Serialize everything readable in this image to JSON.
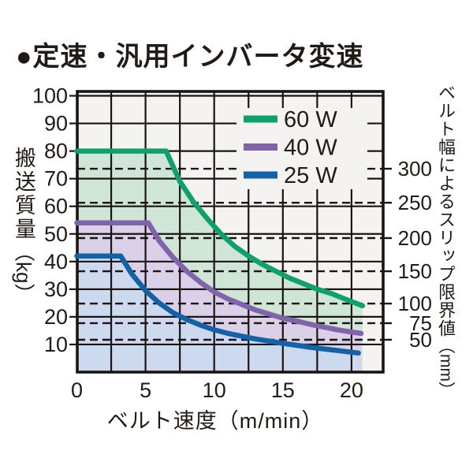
{
  "page": {
    "title": "●定速・汎用インバータ変速"
  },
  "chart_data": {
    "type": "line",
    "title": "●定速・汎用インバータ変速",
    "xlabel": "ベルト速度（m/min）",
    "ylabel_main": "搬送質量",
    "ylabel_unit": "（kg）",
    "y2label_main": "ベルト幅によるスリップ限界値",
    "y2label_unit": "（mm）",
    "xlim": [
      0,
      22.3
    ],
    "ylim": [
      0,
      101.5
    ],
    "x_ticks": [
      0,
      5,
      10,
      15,
      20
    ],
    "x_grid_step": 2.5,
    "y_ticks": [
      10,
      20,
      30,
      40,
      50,
      60,
      70,
      80,
      90,
      100
    ],
    "grid": true,
    "legend_position": "top-right",
    "background": "#f4f3f1",
    "axis_color": "#1a1512",
    "series": [
      {
        "name": "60 W",
        "color": "#0fa169",
        "fill": "#cfe6d6",
        "points": [
          [
            0,
            80
          ],
          [
            6.5,
            80
          ],
          [
            7.5,
            69
          ],
          [
            8.5,
            61.5
          ],
          [
            9.5,
            55.5
          ],
          [
            10.5,
            50
          ],
          [
            11.5,
            45.5
          ],
          [
            12.5,
            42
          ],
          [
            13.5,
            39
          ],
          [
            14.5,
            36.5
          ],
          [
            15.5,
            34
          ],
          [
            16.5,
            32
          ],
          [
            17.5,
            30
          ],
          [
            18.5,
            28.5
          ],
          [
            19.5,
            26.5
          ],
          [
            20.8,
            24
          ]
        ]
      },
      {
        "name": "40 W",
        "color": "#8163ab",
        "fill": "#dad0e8",
        "points": [
          [
            0,
            54
          ],
          [
            5.2,
            54
          ],
          [
            6,
            47.5
          ],
          [
            7,
            41.5
          ],
          [
            8,
            36.5
          ],
          [
            9,
            32.5
          ],
          [
            10,
            29
          ],
          [
            11,
            26.5
          ],
          [
            12,
            24.5
          ],
          [
            13,
            22.5
          ],
          [
            14,
            21
          ],
          [
            15,
            19.5
          ],
          [
            16,
            18.5
          ],
          [
            17,
            17.3
          ],
          [
            18,
            16.3
          ],
          [
            19,
            15.3
          ],
          [
            20,
            14.5
          ],
          [
            20.7,
            14
          ]
        ]
      },
      {
        "name": "25 W",
        "color": "#1362a8",
        "fill": "#cdd9ee",
        "points": [
          [
            0,
            42
          ],
          [
            3.2,
            42
          ],
          [
            4,
            35.5
          ],
          [
            5,
            29.5
          ],
          [
            6,
            25
          ],
          [
            7,
            21.5
          ],
          [
            8,
            19
          ],
          [
            9,
            17
          ],
          [
            10,
            15.3
          ],
          [
            11,
            14
          ],
          [
            12,
            13
          ],
          [
            13,
            12
          ],
          [
            14,
            11.2
          ],
          [
            15,
            10.4
          ],
          [
            16,
            9.7
          ],
          [
            17,
            9
          ],
          [
            18,
            8.4
          ],
          [
            19,
            7.8
          ],
          [
            20,
            7.2
          ],
          [
            20.5,
            6.9
          ]
        ]
      }
    ],
    "slip_limits": {
      "unit": "mm",
      "lines": [
        {
          "label": "300",
          "kg": 73.6
        },
        {
          "label": "250",
          "kg": 61.3
        },
        {
          "label": "200",
          "kg": 48.5
        },
        {
          "label": "150",
          "kg": 36.5
        },
        {
          "label": "100",
          "kg": 24.8
        },
        {
          "label": "75",
          "kg": 17.7
        },
        {
          "label": "50",
          "kg": 11.7
        }
      ]
    }
  }
}
